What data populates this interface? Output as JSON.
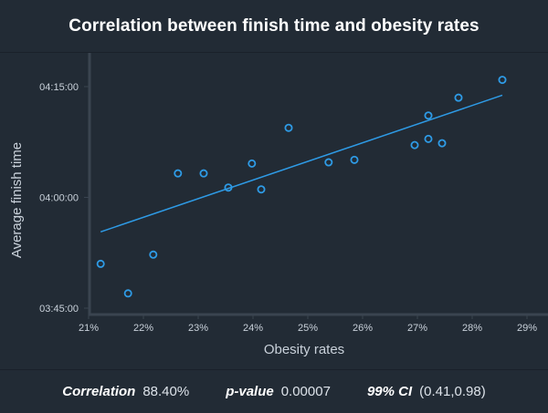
{
  "title": "Correlation between finish time and obesity rates",
  "colors": {
    "background": "#222b35",
    "point": "#2e9be6",
    "trend": "#2e9be6",
    "axis": "#3a4450",
    "tick_text": "#c9d1da",
    "label_text": "#c9d1da"
  },
  "chart_data": {
    "type": "scatter",
    "title": "Correlation between finish time and obesity rates",
    "xlabel": "Obesity rates",
    "ylabel": "Average finish time",
    "xlim": [
      21,
      29
    ],
    "ylim_seconds": [
      13500,
      15300
    ],
    "x_ticks": [
      21,
      22,
      23,
      24,
      25,
      26,
      27,
      28,
      29
    ],
    "x_tick_labels": [
      "21%",
      "22%",
      "23%",
      "24%",
      "25%",
      "26%",
      "27%",
      "28%",
      "29%"
    ],
    "y_ticks_seconds": [
      13500,
      14400,
      15300
    ],
    "y_tick_labels": [
      "03:45:00",
      "04:00:00",
      "04:15:00"
    ],
    "points": [
      {
        "x": 21.22,
        "y_seconds": 13860
      },
      {
        "x": 21.72,
        "y_seconds": 13620
      },
      {
        "x": 22.18,
        "y_seconds": 13935
      },
      {
        "x": 22.63,
        "y_seconds": 14595
      },
      {
        "x": 23.1,
        "y_seconds": 14595
      },
      {
        "x": 23.55,
        "y_seconds": 14480
      },
      {
        "x": 23.98,
        "y_seconds": 14675
      },
      {
        "x": 24.15,
        "y_seconds": 14465
      },
      {
        "x": 24.65,
        "y_seconds": 14965
      },
      {
        "x": 25.38,
        "y_seconds": 14685
      },
      {
        "x": 25.85,
        "y_seconds": 14705
      },
      {
        "x": 26.95,
        "y_seconds": 14825
      },
      {
        "x": 27.2,
        "y_seconds": 15065
      },
      {
        "x": 27.2,
        "y_seconds": 14875
      },
      {
        "x": 27.45,
        "y_seconds": 14840
      },
      {
        "x": 27.75,
        "y_seconds": 15210
      },
      {
        "x": 28.55,
        "y_seconds": 15355
      }
    ],
    "trendline": {
      "x": [
        21.22,
        28.55
      ],
      "y_seconds": [
        14120,
        15230
      ]
    }
  },
  "stats": {
    "correlation_label": "Correlation",
    "correlation_value": "88.40%",
    "pvalue_label": "p-value",
    "pvalue_value": "0.00007",
    "ci_label": "99% CI",
    "ci_value": "(0.41,0.98)"
  }
}
